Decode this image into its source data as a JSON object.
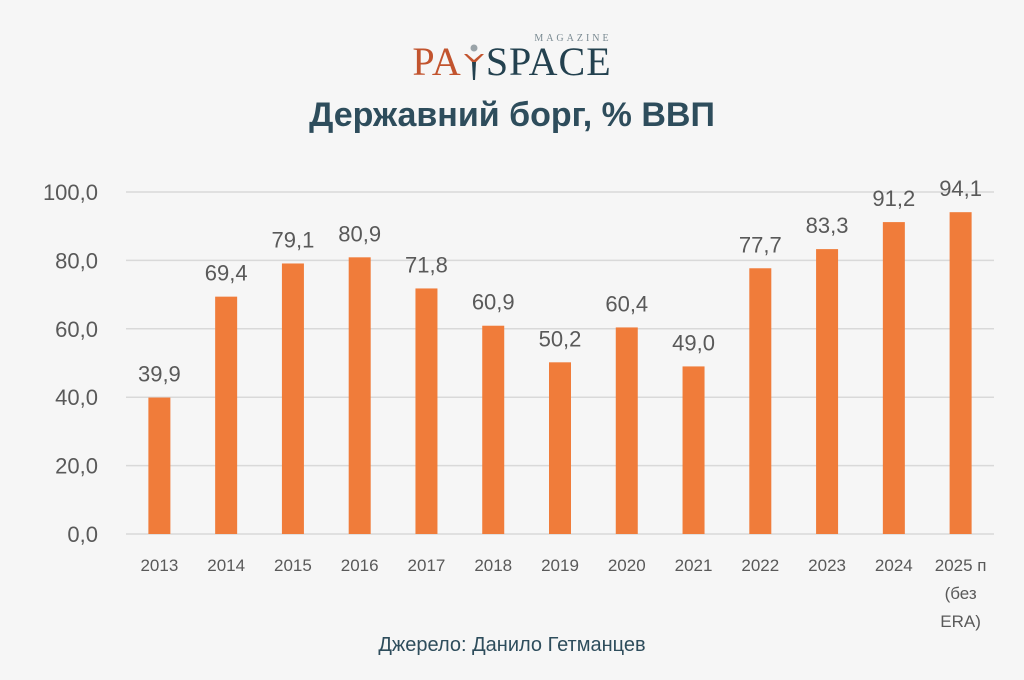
{
  "logo": {
    "pay": "PA",
    "space": "SPACE",
    "magazine": "MAGAZINE"
  },
  "chart_data": {
    "type": "bar",
    "title": "Державний борг, % ВВП",
    "categories": [
      "2013",
      "2014",
      "2015",
      "2016",
      "2017",
      "2018",
      "2019",
      "2020",
      "2021",
      "2022",
      "2023",
      "2024",
      "2025 п (без ERA)"
    ],
    "category_lines": [
      [
        "2013"
      ],
      [
        "2014"
      ],
      [
        "2015"
      ],
      [
        "2016"
      ],
      [
        "2017"
      ],
      [
        "2018"
      ],
      [
        "2019"
      ],
      [
        "2020"
      ],
      [
        "2021"
      ],
      [
        "2022"
      ],
      [
        "2023"
      ],
      [
        "2024"
      ],
      [
        "2025 п",
        "(без",
        "ERA)"
      ]
    ],
    "values": [
      39.9,
      69.4,
      79.1,
      80.9,
      71.8,
      60.9,
      50.2,
      60.4,
      49.0,
      77.7,
      83.3,
      91.2,
      94.1
    ],
    "value_labels": [
      "39,9",
      "69,4",
      "79,1",
      "80,9",
      "71,8",
      "60,9",
      "50,2",
      "60,4",
      "49,0",
      "77,7",
      "83,3",
      "91,2",
      "94,1"
    ],
    "y_ticks": [
      0,
      20,
      40,
      60,
      80,
      100
    ],
    "y_tick_labels": [
      "0,0",
      "20,0",
      "40,0",
      "60,0",
      "80,0",
      "100,0"
    ],
    "ylim": [
      0,
      100
    ],
    "grid": true,
    "colors": {
      "bar": "#f07c3a",
      "grid": "#d9d9d9",
      "text": "#595959"
    }
  },
  "source": "Джерело: Данило Гетманцев"
}
